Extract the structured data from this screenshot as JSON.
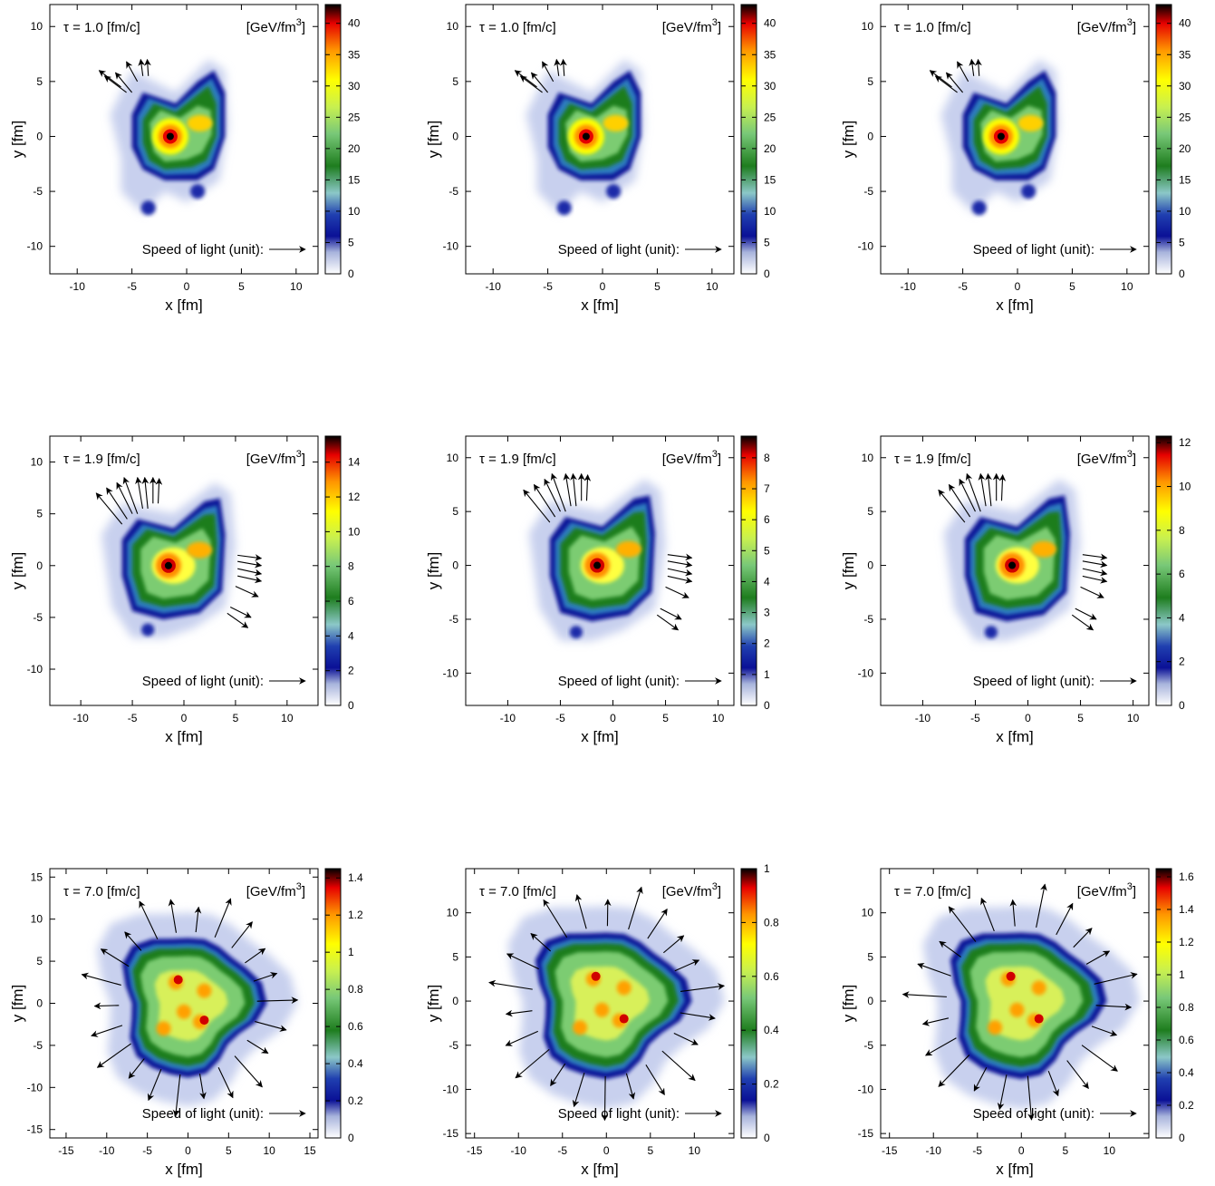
{
  "figure": {
    "x_label": "x [fm]",
    "y_label": "y [fm]",
    "units_label": "[GeV/fm",
    "units_sup": "3",
    "speed_label": "Speed of light (unit):"
  },
  "chart_data": [
    {
      "type": "heatmap",
      "row": 0,
      "col": 0,
      "tau": "τ = 1.0 [fm/c]",
      "xlim": [
        -12.5,
        12
      ],
      "ylim": [
        -12.5,
        12
      ],
      "xticks": [
        -10,
        -5,
        0,
        5,
        10
      ],
      "yticks": [
        -10,
        -5,
        0,
        5,
        10
      ],
      "cbmax": 43,
      "cbticks": [
        0,
        5,
        10,
        15,
        20,
        25,
        30,
        35,
        40
      ],
      "time": 1
    },
    {
      "type": "heatmap",
      "row": 0,
      "col": 1,
      "tau": "τ = 1.0 [fm/c]",
      "xlim": [
        -12.5,
        12
      ],
      "ylim": [
        -12.5,
        12
      ],
      "xticks": [
        -10,
        -5,
        0,
        5,
        10
      ],
      "yticks": [
        -10,
        -5,
        0,
        5,
        10
      ],
      "cbmax": 43,
      "cbticks": [
        0,
        5,
        10,
        15,
        20,
        25,
        30,
        35,
        40
      ],
      "time": 1
    },
    {
      "type": "heatmap",
      "row": 0,
      "col": 2,
      "tau": "τ = 1.0 [fm/c]",
      "xlim": [
        -12.5,
        12
      ],
      "ylim": [
        -12.5,
        12
      ],
      "xticks": [
        -10,
        -5,
        0,
        5,
        10
      ],
      "yticks": [
        -10,
        -5,
        0,
        5,
        10
      ],
      "cbmax": 43,
      "cbticks": [
        0,
        5,
        10,
        15,
        20,
        25,
        30,
        35,
        40
      ],
      "time": 1
    },
    {
      "type": "heatmap",
      "row": 1,
      "col": 0,
      "tau": "τ = 1.9 [fm/c]",
      "xlim": [
        -13,
        13
      ],
      "ylim": [
        -13.5,
        12.5
      ],
      "xticks": [
        -10,
        -5,
        0,
        5,
        10
      ],
      "yticks": [
        -10,
        -5,
        0,
        5,
        10
      ],
      "cbmax": 15.5,
      "cbticks": [
        0,
        2,
        4,
        6,
        8,
        10,
        12,
        14
      ],
      "time": 2
    },
    {
      "type": "heatmap",
      "row": 1,
      "col": 1,
      "tau": "τ = 1.9 [fm/c]",
      "xlim": [
        -14,
        11.5
      ],
      "ylim": [
        -13,
        12
      ],
      "xticks": [
        -10,
        -5,
        0,
        5,
        10
      ],
      "yticks": [
        -10,
        -5,
        0,
        5,
        10
      ],
      "cbmax": 8.7,
      "cbticks": [
        0,
        1,
        2,
        3,
        4,
        5,
        6,
        7,
        8
      ],
      "time": 2
    },
    {
      "type": "heatmap",
      "row": 1,
      "col": 2,
      "tau": "τ = 1.9 [fm/c]",
      "xlim": [
        -14,
        11.5
      ],
      "ylim": [
        -13,
        12
      ],
      "xticks": [
        -10,
        -5,
        0,
        5,
        10
      ],
      "yticks": [
        -10,
        -5,
        0,
        5,
        10
      ],
      "cbmax": 12.3,
      "cbticks": [
        0,
        2,
        4,
        6,
        8,
        10,
        12
      ],
      "time": 2
    },
    {
      "type": "heatmap",
      "row": 2,
      "col": 0,
      "tau": "τ = 7.0 [fm/c]",
      "xlim": [
        -17,
        16
      ],
      "ylim": [
        -16,
        16
      ],
      "xticks": [
        -15,
        -10,
        -5,
        0,
        5,
        10,
        15
      ],
      "yticks": [
        -15,
        -10,
        -5,
        0,
        5,
        10,
        15
      ],
      "cbmax": 1.45,
      "cbticks": [
        0,
        0.2,
        0.4,
        0.6,
        0.8,
        1,
        1.2,
        1.4
      ],
      "time": 3
    },
    {
      "type": "heatmap",
      "row": 2,
      "col": 1,
      "tau": "τ = 7.0 [fm/c]",
      "xlim": [
        -16,
        14.5
      ],
      "ylim": [
        -15.5,
        15
      ],
      "xticks": [
        -15,
        -10,
        -5,
        0,
        5,
        10
      ],
      "yticks": [
        -15,
        -10,
        -5,
        0,
        5,
        10
      ],
      "cbmax": 1,
      "cbticks": [
        0,
        0.2,
        0.4,
        0.6,
        0.8,
        1
      ],
      "time": 3
    },
    {
      "type": "heatmap",
      "row": 2,
      "col": 2,
      "tau": "τ = 7.0 [fm/c]",
      "xlim": [
        -16,
        14.5
      ],
      "ylim": [
        -15.5,
        15
      ],
      "xticks": [
        -15,
        -10,
        -5,
        0,
        5,
        10
      ],
      "yticks": [
        -15,
        -10,
        -5,
        0,
        5,
        10
      ],
      "cbmax": 1.65,
      "cbticks": [
        0,
        0.2,
        0.4,
        0.6,
        0.8,
        1,
        1.2,
        1.4,
        1.6
      ],
      "time": 3
    }
  ]
}
